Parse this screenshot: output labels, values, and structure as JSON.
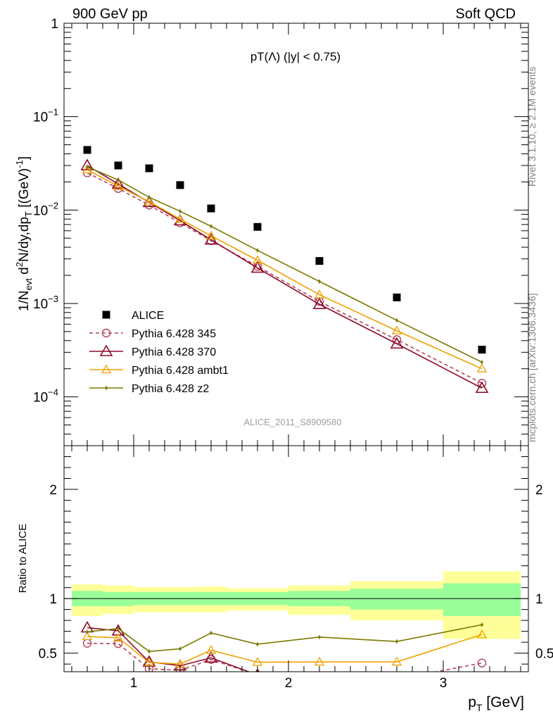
{
  "header": {
    "left": "900 GeV pp",
    "right": "Soft QCD"
  },
  "side_labels": {
    "rivet": "Rivet 3.1.10, ≥ 2.1M events",
    "mcplots": "mcplots.cern.ch [arXiv:1306.3436]"
  },
  "watermark": "ALICE_2011_S8909580",
  "chart_data": [
    {
      "type": "scatter",
      "title": "pT(Λ) (|y| < 0.75)",
      "ylabel": "1/N_evt d²N/dy,dp_T [(GeV)^-1]",
      "yscale": "log",
      "ylim": [
        3e-05,
        1
      ],
      "xlim": [
        0.55,
        3.55
      ],
      "y_ticks": [
        {
          "v": 1,
          "m": "1",
          "e": ""
        },
        {
          "v": 0.1,
          "m": "10",
          "e": "−1"
        },
        {
          "v": 0.01,
          "m": "10",
          "e": "−2"
        },
        {
          "v": 0.001,
          "m": "10",
          "e": "−3"
        },
        {
          "v": 0.0001,
          "m": "10",
          "e": "−4"
        }
      ],
      "legend_position": "lower-left",
      "series": [
        {
          "name": "ALICE",
          "color": "#000000",
          "marker": "square",
          "line": "none",
          "x": [
            0.7,
            0.9,
            1.1,
            1.3,
            1.5,
            1.8,
            2.2,
            2.7,
            3.25
          ],
          "y": [
            0.044,
            0.03,
            0.028,
            0.0185,
            0.0104,
            0.0066,
            0.00285,
            0.00116,
            0.00032
          ]
        },
        {
          "name": "Pythia 6.428 345",
          "color": "#b5405a",
          "marker": "circle-open",
          "line": "dashed",
          "x": [
            0.7,
            0.9,
            1.1,
            1.3,
            1.5,
            1.8,
            2.2,
            2.7,
            3.25
          ],
          "y": [
            0.025,
            0.017,
            0.0113,
            0.0073,
            0.0047,
            0.0025,
            0.00105,
            0.00041,
            0.00014
          ]
        },
        {
          "name": "Pythia 6.428 370",
          "color": "#8c0a28",
          "marker": "triangle-open",
          "line": "solid",
          "x": [
            0.7,
            0.9,
            1.1,
            1.3,
            1.5,
            1.8,
            2.2,
            2.7,
            3.25
          ],
          "y": [
            0.03,
            0.019,
            0.0121,
            0.0077,
            0.0048,
            0.0024,
            0.00098,
            0.00037,
            0.000124
          ]
        },
        {
          "name": "Pythia 6.428 ambt1",
          "color": "#f0a000",
          "marker": "triangle-open-small",
          "line": "solid",
          "x": [
            0.7,
            0.9,
            1.1,
            1.3,
            1.5,
            1.8,
            2.2,
            2.7,
            3.25
          ],
          "y": [
            0.027,
            0.018,
            0.0123,
            0.008,
            0.0053,
            0.0029,
            0.00124,
            0.00051,
            0.0002
          ]
        },
        {
          "name": "Pythia 6.428 z2",
          "color": "#7a7a00",
          "marker": "dot",
          "line": "solid",
          "x": [
            0.7,
            0.9,
            1.1,
            1.3,
            1.5,
            1.8,
            2.2,
            2.7,
            3.25
          ],
          "y": [
            0.029,
            0.021,
            0.0137,
            0.0097,
            0.0067,
            0.0037,
            0.00172,
            0.00066,
            0.000235
          ]
        }
      ]
    },
    {
      "type": "line",
      "ylabel": "Ratio to ALICE",
      "xlabel": "p_T [GeV]",
      "xlim": [
        0.55,
        3.55
      ],
      "ylim": [
        0.33,
        2.4
      ],
      "x_ticks": [
        1,
        2,
        3
      ],
      "y_ticks": [
        0.5,
        1,
        2
      ],
      "reference_line": 1,
      "bands": [
        {
          "x0": 0.6,
          "x1": 0.8,
          "stat": [
            0.93,
            1.07
          ],
          "total": [
            0.84,
            1.13
          ]
        },
        {
          "x0": 0.8,
          "x1": 1.0,
          "stat": [
            0.93,
            1.06
          ],
          "total": [
            0.86,
            1.12
          ]
        },
        {
          "x0": 1.0,
          "x1": 1.2,
          "stat": [
            0.94,
            1.06
          ],
          "total": [
            0.875,
            1.105
          ]
        },
        {
          "x0": 1.2,
          "x1": 1.4,
          "stat": [
            0.94,
            1.06
          ],
          "total": [
            0.875,
            1.105
          ]
        },
        {
          "x0": 1.4,
          "x1": 1.6,
          "stat": [
            0.94,
            1.06
          ],
          "total": [
            0.875,
            1.11
          ]
        },
        {
          "x0": 1.6,
          "x1": 2.0,
          "stat": [
            0.94,
            1.06
          ],
          "total": [
            0.89,
            1.095
          ]
        },
        {
          "x0": 2.0,
          "x1": 2.4,
          "stat": [
            0.93,
            1.07
          ],
          "total": [
            0.85,
            1.12
          ]
        },
        {
          "x0": 2.4,
          "x1": 3.0,
          "stat": [
            0.9,
            1.09
          ],
          "total": [
            0.8,
            1.16
          ]
        },
        {
          "x0": 3.0,
          "x1": 3.5,
          "stat": [
            0.84,
            1.14
          ],
          "total": [
            0.63,
            1.25
          ]
        }
      ],
      "series": [
        {
          "name": "Pythia 6.428 345",
          "color": "#b5405a",
          "marker": "circle-open",
          "line": "dashed",
          "x": [
            0.7,
            0.9,
            1.1,
            1.3,
            1.5,
            1.8,
            2.2,
            2.7,
            3.25
          ],
          "y": [
            0.59,
            0.587,
            0.358,
            0.342,
            0.442,
            0.3,
            0.26,
            0.26,
            0.41
          ]
        },
        {
          "name": "Pythia 6.428 370",
          "color": "#8c0a28",
          "marker": "triangle-open",
          "line": "solid",
          "x": [
            0.7,
            0.9,
            1.1,
            1.3,
            1.5,
            1.8,
            2.2,
            2.7,
            3.25
          ],
          "y": [
            0.733,
            0.705,
            0.42,
            0.385,
            0.457,
            0.3,
            0.26,
            0.26,
            0.26
          ]
        },
        {
          "name": "Pythia 6.428 ambt1",
          "color": "#f0a000",
          "marker": "triangle-open-small",
          "line": "solid",
          "x": [
            0.7,
            0.9,
            1.1,
            1.3,
            1.5,
            1.8,
            2.2,
            2.7,
            3.25
          ],
          "y": [
            0.653,
            0.64,
            0.415,
            0.4,
            0.527,
            0.417,
            0.42,
            0.42,
            0.67
          ]
        },
        {
          "name": "Pythia 6.428 z2",
          "color": "#7a7a00",
          "marker": "dot",
          "line": "solid",
          "x": [
            0.7,
            0.9,
            1.1,
            1.3,
            1.5,
            1.8,
            2.2,
            2.7,
            3.25
          ],
          "y": [
            0.695,
            0.725,
            0.516,
            0.54,
            0.685,
            0.582,
            0.647,
            0.607,
            0.76
          ]
        }
      ]
    }
  ],
  "colors": {
    "band_stat": "#99ff99",
    "band_total": "#ffff99"
  }
}
